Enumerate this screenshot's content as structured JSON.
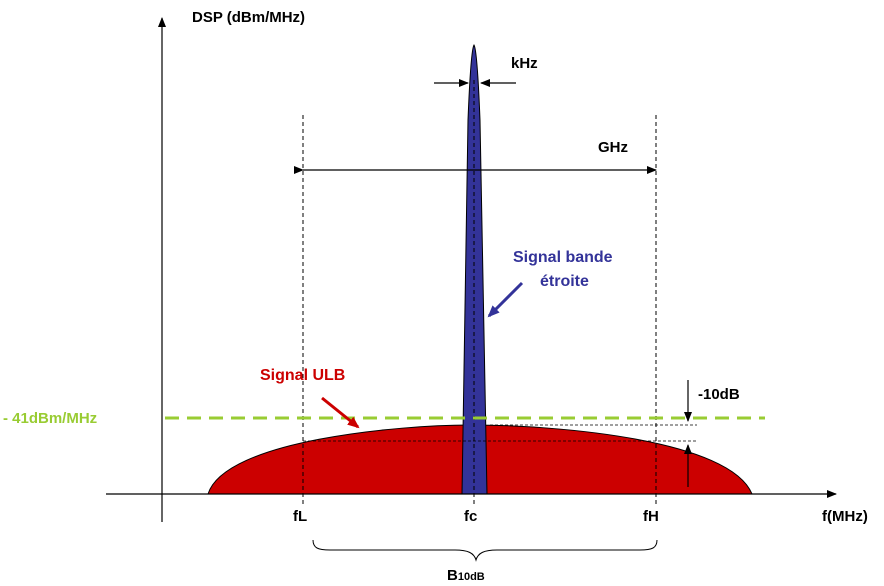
{
  "diagram": {
    "y_axis_label": "DSP (dBm/MHz)",
    "x_axis_label": "f(MHz)",
    "kHz_label": "kHz",
    "GHz_label": "GHz",
    "narrowband_label_line1": "Signal bande",
    "narrowband_label_line2": "étroite",
    "uwb_label": "Signal ULB",
    "limit_label": "- 41dBm/MHz",
    "minus10dB_label": "-10dB",
    "fL_label": "fL",
    "fc_label": "fc",
    "fH_label": "fH",
    "bandwidth_label_main": "B",
    "bandwidth_label_sub": "10dB"
  },
  "colors": {
    "uwb_fill": "#cc0000",
    "narrowband_fill": "#333399",
    "limit_line": "#99cc33",
    "narrowband_text": "#333399",
    "uwb_text": "#cc0000",
    "limit_text": "#99cc33",
    "axes": "#000000"
  }
}
